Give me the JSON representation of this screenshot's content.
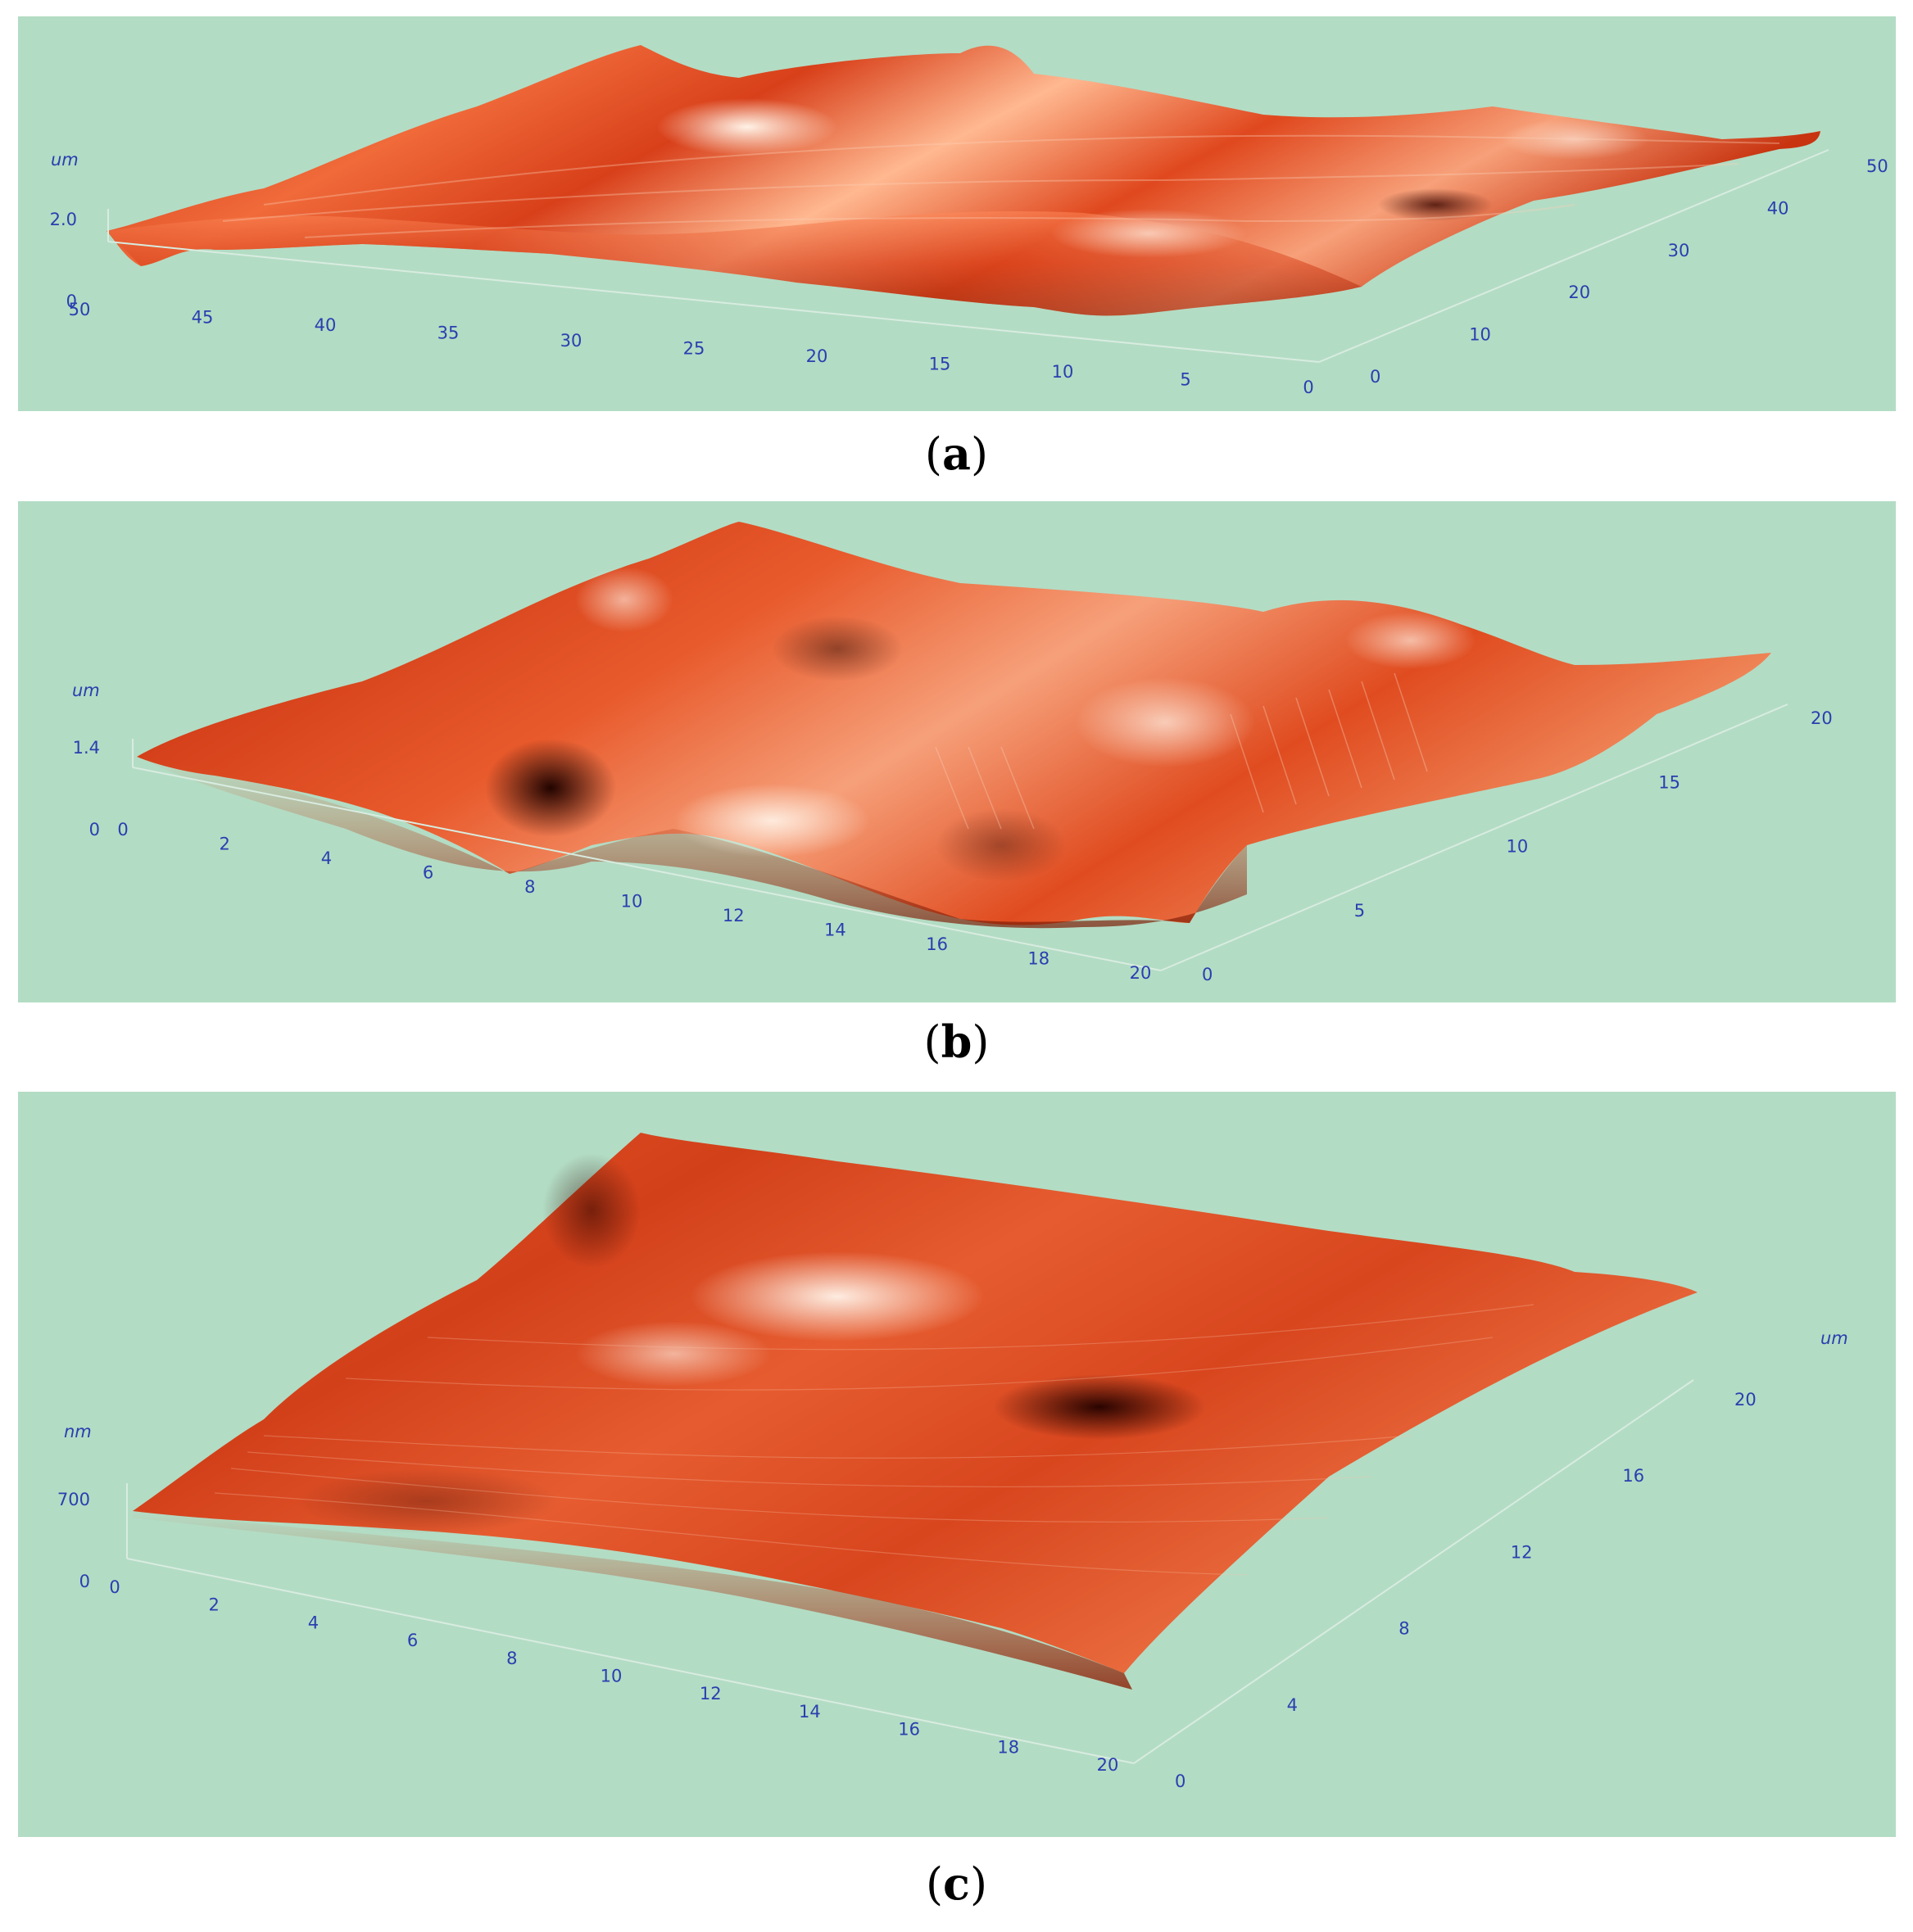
{
  "chart_data": [
    {
      "type": "surface3d",
      "panel": "a",
      "caption_letter": "a",
      "z_unit": "um",
      "z_ticks": [
        "0",
        "2.0"
      ],
      "z_range": [
        0,
        2.0
      ],
      "x_ticks": [
        "50",
        "45",
        "40",
        "35",
        "30",
        "25",
        "20",
        "15",
        "10",
        "5",
        "0"
      ],
      "x_range": [
        0,
        50
      ],
      "y_ticks": [
        "0",
        "10",
        "20",
        "30",
        "40",
        "50"
      ],
      "y_range": [
        0,
        50
      ],
      "colors": {
        "background": "#b3dcc4",
        "surface_dark": "#4a0a00",
        "surface_mid": "#e0401a",
        "surface_light": "#fff0e0",
        "tick_text": "#2a3fb0"
      }
    },
    {
      "type": "surface3d",
      "panel": "b",
      "caption_letter": "b",
      "z_unit": "um",
      "z_ticks": [
        "0",
        "1.4"
      ],
      "z_range": [
        0,
        1.4
      ],
      "x_ticks": [
        "0",
        "2",
        "4",
        "6",
        "8",
        "10",
        "12",
        "14",
        "16",
        "18",
        "20"
      ],
      "x_range": [
        0,
        20
      ],
      "y_ticks": [
        "0",
        "5",
        "10",
        "15",
        "20"
      ],
      "y_range": [
        0,
        20
      ],
      "colors": {
        "background": "#b3dcc4",
        "surface_dark": "#4a0a00",
        "surface_mid": "#e0401a",
        "surface_light": "#fff0e0",
        "tick_text": "#2a3fb0"
      }
    },
    {
      "type": "surface3d",
      "panel": "c",
      "caption_letter": "c",
      "z_unit": "nm",
      "y_unit": "um",
      "z_ticks": [
        "0",
        "700"
      ],
      "z_range": [
        0,
        700
      ],
      "x_ticks": [
        "0",
        "2",
        "4",
        "6",
        "8",
        "10",
        "12",
        "14",
        "16",
        "18",
        "20"
      ],
      "x_range": [
        0,
        20
      ],
      "y_ticks": [
        "0",
        "4",
        "8",
        "12",
        "16",
        "20"
      ],
      "y_range": [
        0,
        20
      ],
      "colors": {
        "background": "#b3dcc4",
        "surface_dark": "#4a0a00",
        "surface_mid": "#e0401a",
        "surface_light": "#fff0e0",
        "tick_text": "#2a3fb0"
      }
    }
  ]
}
